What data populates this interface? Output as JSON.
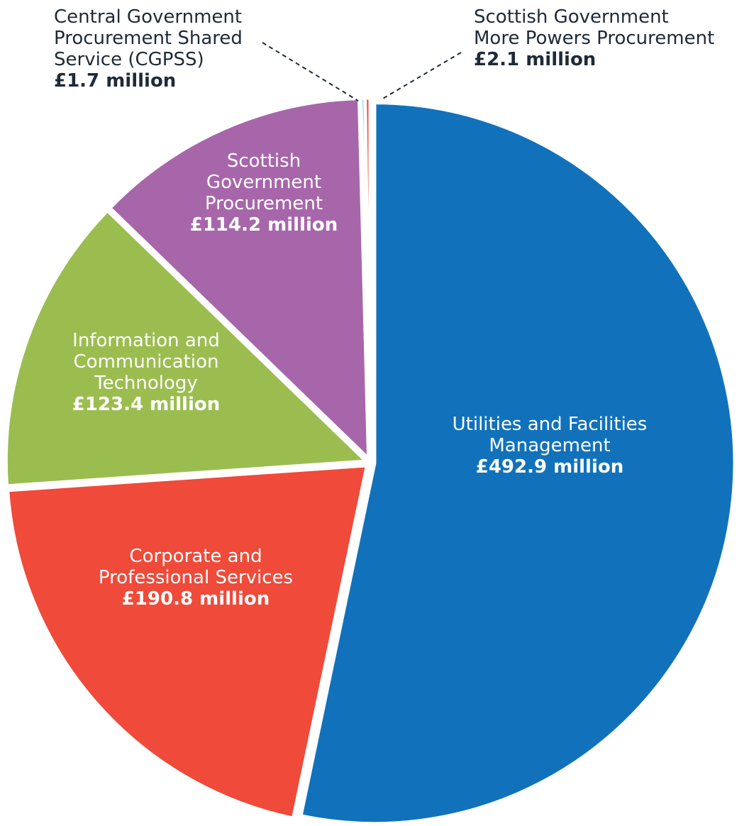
{
  "chart_data": {
    "type": "pie",
    "unit": "£ million",
    "slices": [
      {
        "name": "Utilities and Facilities Management",
        "value": 492.9,
        "color": "#1172bb",
        "label_lines": [
          "Utilities and Facilities",
          "Management"
        ],
        "value_label": "£492.9 million"
      },
      {
        "name": "Corporate and Professional Services",
        "value": 190.8,
        "color": "#ef4a3a",
        "label_lines": [
          "Corporate and",
          "Professional Services"
        ],
        "value_label": "£190.8 million"
      },
      {
        "name": "Information and Communication Technology",
        "value": 123.4,
        "color": "#9bbd4f",
        "label_lines": [
          "Information and",
          "Communication",
          "Technology"
        ],
        "value_label": "£123.4 million"
      },
      {
        "name": "Scottish Government Procurement",
        "value": 114.2,
        "color": "#a766aa",
        "label_lines": [
          "Scottish",
          "Government",
          "Procurement"
        ],
        "value_label": "£114.2 million"
      },
      {
        "name": "Central Government Procurement Shared Service (CGPSS)",
        "value": 1.7,
        "color": "#3bb7b8",
        "label_lines": [
          "Central Government",
          "Procurement Shared",
          "Service (CGPSS)"
        ],
        "value_label": "£1.7 million"
      },
      {
        "name": "Scottish Government More Powers Procurement",
        "value": 2.1,
        "color": "#ef4a3a",
        "label_lines": [
          "Scottish Government",
          "More Powers Procurement"
        ],
        "value_label": "£2.1 million"
      }
    ]
  }
}
